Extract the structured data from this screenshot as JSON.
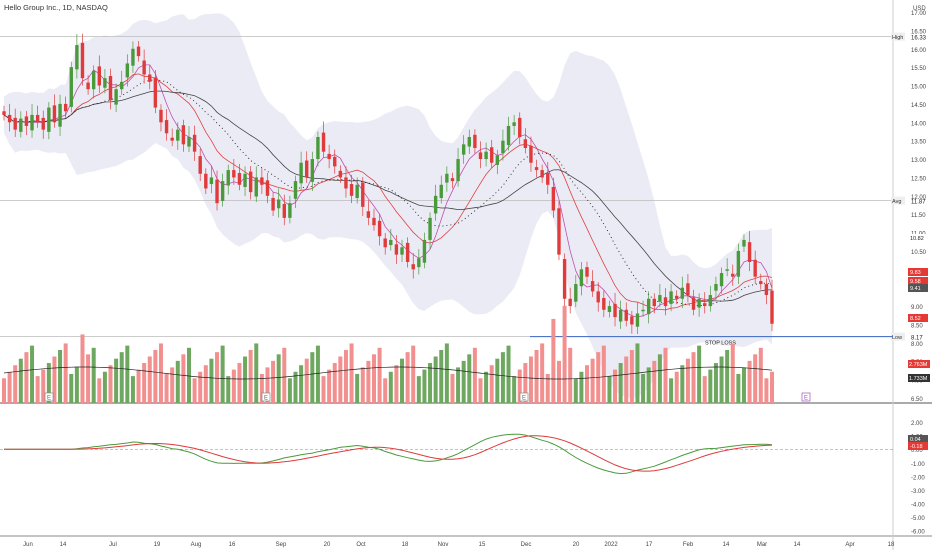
{
  "header": {
    "title": "Hello Group Inc., 1D, NASDAQ",
    "currency": "USD"
  },
  "chart_data": [
    {
      "type": "candlestick",
      "title": "Hello Group Inc., 1D, NASDAQ",
      "ylim": [
        6.5,
        17.0
      ],
      "y_ticks": [
        "17.00",
        "16.50",
        "16.00",
        "15.50",
        "15.00",
        "14.50",
        "14.00",
        "13.50",
        "13.00",
        "12.50",
        "12.00",
        "11.50",
        "11.00",
        "10.50",
        "10.00",
        "9.50",
        "9.00",
        "8.50",
        "8.00",
        "7.50",
        "7.00",
        "6.50"
      ],
      "x_tick_labels": [
        "Jun",
        "14",
        "Jul",
        "19",
        "Aug",
        "16",
        "Sep",
        "20",
        "Oct",
        "18",
        "Nov",
        "15",
        "Dec",
        "20",
        "2022",
        "17",
        "Feb",
        "14",
        "Mar",
        "14",
        "Apr",
        "18"
      ],
      "levels": [
        {
          "label": "High",
          "value": "16.33"
        },
        {
          "label": "Avg",
          "value": "11.87"
        },
        {
          "label": "Low",
          "value": "8.17"
        }
      ],
      "price_badges": [
        {
          "value": "10.82",
          "color": "#ffffff",
          "text_color": "#222222"
        },
        {
          "value": "9.83",
          "color": "#e53935",
          "text_color": "#ffffff"
        },
        {
          "value": "9.58",
          "color": "#e53935",
          "text_color": "#ffffff"
        },
        {
          "value": "9.41",
          "color": "#555555",
          "text_color": "#ffffff"
        },
        {
          "value": "8.52",
          "color": "#e53935",
          "text_color": "#ffffff"
        }
      ],
      "annotation": "STOP LOSS",
      "stop_loss_value": 8.17,
      "closes": [
        14.2,
        14.0,
        13.8,
        14.1,
        13.9,
        14.2,
        14.0,
        13.8,
        14.4,
        14.0,
        14.5,
        14.3,
        15.5,
        16.1,
        15.2,
        14.9,
        15.4,
        15.0,
        15.2,
        14.6,
        14.9,
        15.1,
        15.6,
        16.0,
        15.8,
        15.3,
        15.1,
        14.4,
        14.0,
        13.7,
        13.5,
        13.8,
        13.4,
        13.6,
        13.2,
        12.6,
        12.2,
        12.5,
        11.8,
        12.4,
        12.7,
        12.5,
        12.3,
        12.6,
        12.1,
        12.5,
        12.3,
        12.0,
        11.6,
        11.9,
        11.4,
        11.8,
        12.4,
        12.9,
        12.5,
        13.0,
        13.6,
        13.2,
        13.0,
        12.8,
        12.5,
        12.2,
        12.0,
        12.3,
        11.7,
        11.4,
        11.2,
        10.9,
        10.6,
        10.8,
        10.4,
        10.6,
        10.2,
        10.0,
        10.3,
        10.8,
        11.4,
        12.0,
        12.3,
        12.6,
        12.4,
        13.0,
        13.4,
        13.6,
        13.3,
        13.0,
        13.2,
        12.9,
        13.1,
        13.5,
        13.9,
        14.0,
        13.6,
        13.3,
        12.9,
        12.7,
        12.5,
        12.3,
        11.6,
        10.4,
        9.2,
        9.0,
        9.6,
        10.0,
        9.8,
        9.4,
        9.1,
        8.9,
        9.0,
        8.7,
        8.9,
        8.6,
        8.5,
        8.8,
        8.9,
        9.2,
        9.0,
        9.3,
        9.0,
        9.4,
        9.2,
        9.5,
        9.3,
        8.9,
        9.2,
        9.0,
        9.3,
        9.6,
        9.9,
        10.0,
        9.8,
        10.5,
        10.8,
        10.2,
        9.8,
        9.6,
        9.3,
        8.52
      ],
      "volume": {
        "ma_label": "2.763M",
        "vol_label": "1.733M"
      },
      "macd": {
        "y_ticks": [
          "2.00",
          "1.00",
          "0.00",
          "-1.00",
          "-2.00",
          "-3.00",
          "-4.00",
          "-5.00",
          "-6.00"
        ],
        "ylim": [
          -6.4,
          2.6
        ],
        "badges": [
          {
            "value": "0.04",
            "color": "#555555"
          },
          {
            "value": "-0.18",
            "color": "#e53935"
          }
        ]
      }
    }
  ],
  "colors": {
    "up": "#4a9a3c",
    "down": "#e03b3b",
    "vol_up": "#6ea860",
    "vol_down": "#f28f8f",
    "band": "#e8e8f4"
  }
}
